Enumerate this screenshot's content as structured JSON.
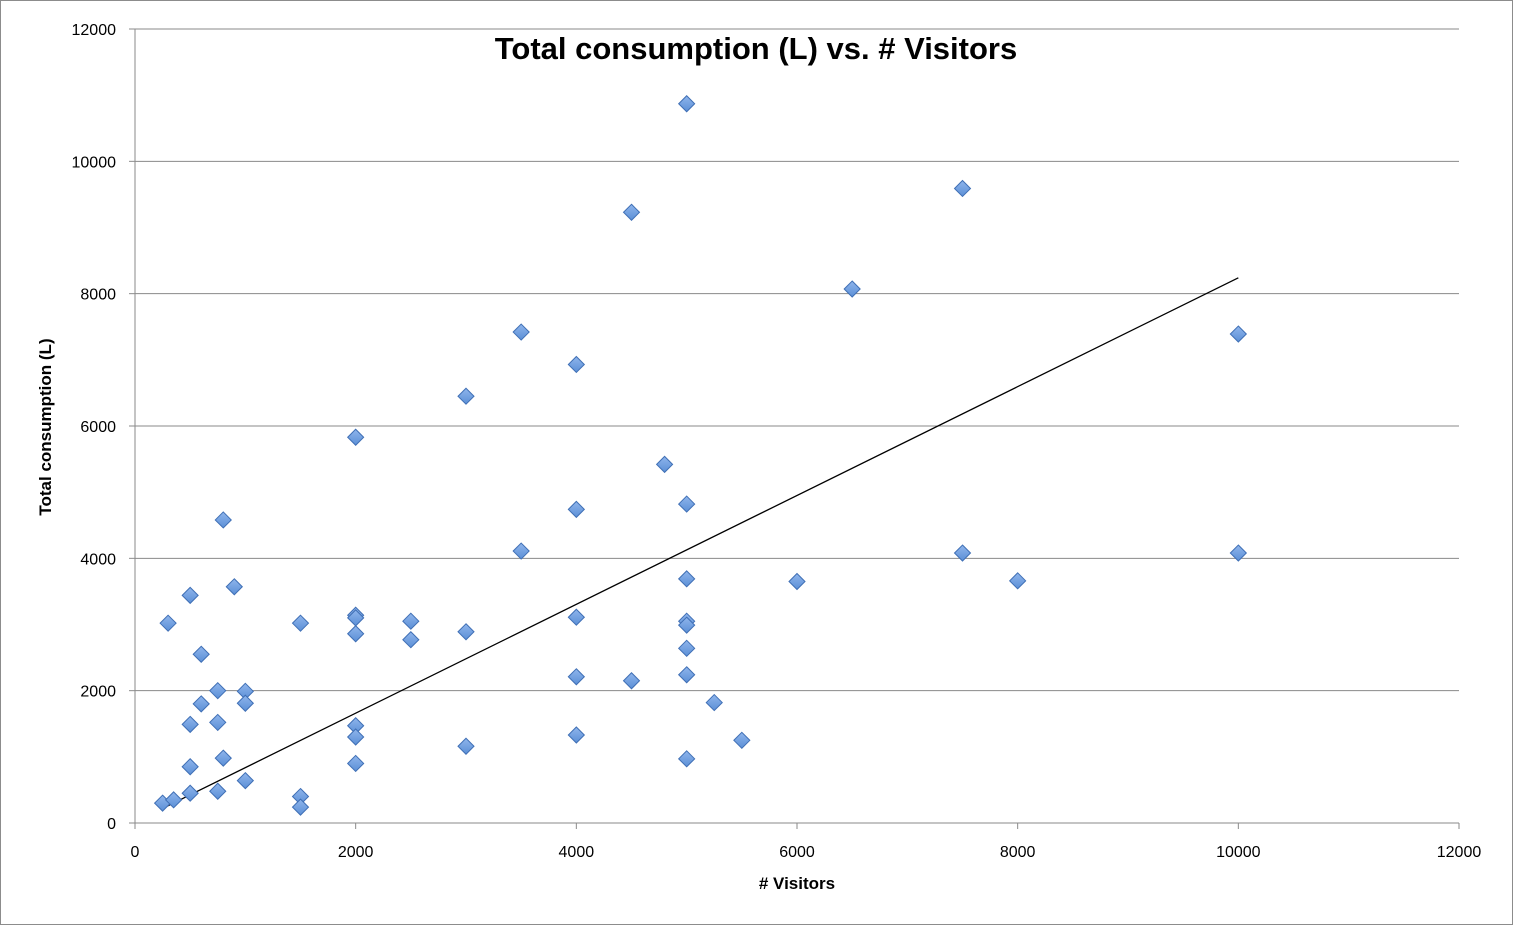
{
  "chart_data": {
    "type": "scatter",
    "title": "Total consumption (L) vs. # Visitors",
    "xlabel": "# Visitors",
    "ylabel": "Total consumption (L)",
    "xlim": [
      0,
      12000
    ],
    "ylim": [
      0,
      12000
    ],
    "xticks": [
      "0",
      "2000",
      "4000",
      "6000",
      "8000",
      "10000",
      "12000"
    ],
    "yticks": [
      "0",
      "2000",
      "4000",
      "6000",
      "8000",
      "10000",
      "12000"
    ],
    "grid": "horizontal major gridlines",
    "legend": "none",
    "marker": "diamond",
    "marker_color": "#5b8fd6",
    "points": [
      [
        250,
        300
      ],
      [
        350,
        350
      ],
      [
        300,
        3020
      ],
      [
        500,
        450
      ],
      [
        500,
        850
      ],
      [
        500,
        1490
      ],
      [
        500,
        3440
      ],
      [
        600,
        2550
      ],
      [
        600,
        1800
      ],
      [
        750,
        2000
      ],
      [
        750,
        1520
      ],
      [
        750,
        480
      ],
      [
        800,
        980
      ],
      [
        800,
        4580
      ],
      [
        900,
        3570
      ],
      [
        1000,
        1990
      ],
      [
        1000,
        1810
      ],
      [
        1000,
        640
      ],
      [
        1500,
        3020
      ],
      [
        1500,
        400
      ],
      [
        1500,
        240
      ],
      [
        2000,
        5830
      ],
      [
        2000,
        3140
      ],
      [
        2000,
        3100
      ],
      [
        2000,
        2860
      ],
      [
        2000,
        1470
      ],
      [
        2000,
        1300
      ],
      [
        2000,
        900
      ],
      [
        2500,
        3050
      ],
      [
        2500,
        2770
      ],
      [
        3000,
        6450
      ],
      [
        3000,
        2890
      ],
      [
        3000,
        1160
      ],
      [
        3500,
        7420
      ],
      [
        3500,
        4110
      ],
      [
        4000,
        6930
      ],
      [
        4000,
        4740
      ],
      [
        4000,
        3110
      ],
      [
        4000,
        2210
      ],
      [
        4000,
        1330
      ],
      [
        4500,
        9230
      ],
      [
        4500,
        2150
      ],
      [
        4800,
        5420
      ],
      [
        5000,
        10870
      ],
      [
        5000,
        4820
      ],
      [
        5000,
        3690
      ],
      [
        5000,
        3050
      ],
      [
        5000,
        2990
      ],
      [
        5000,
        2640
      ],
      [
        5000,
        2240
      ],
      [
        5000,
        970
      ],
      [
        5250,
        1820
      ],
      [
        5500,
        1250
      ],
      [
        6000,
        3650
      ],
      [
        6500,
        8070
      ],
      [
        7500,
        9590
      ],
      [
        7500,
        4080
      ],
      [
        8000,
        3660
      ],
      [
        10000,
        7390
      ],
      [
        10000,
        4080
      ]
    ],
    "trendline": {
      "type": "linear",
      "x": [
        250,
        10000
      ],
      "y": [
        220,
        8240
      ]
    }
  }
}
